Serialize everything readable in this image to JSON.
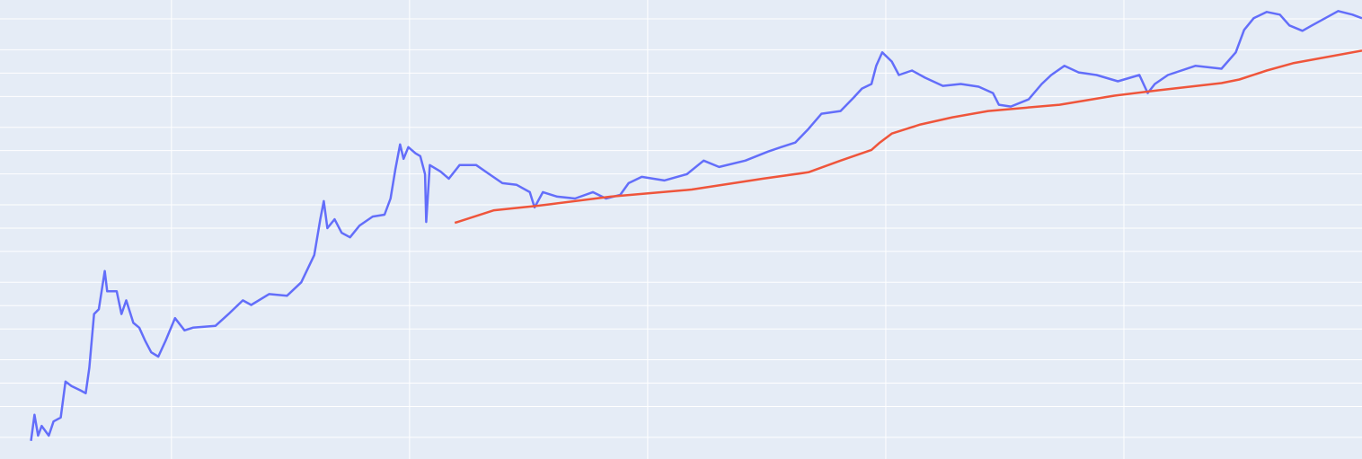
{
  "chart_data": {
    "type": "line",
    "ylog": true,
    "grid": true,
    "background": "#e5ecf6",
    "grid_color": "#ffffff",
    "xlim": [
      2010.56,
      2022.0
    ],
    "xticks": [
      2012,
      2014,
      2016,
      2018,
      2020
    ],
    "ylim": [
      0.105,
      87700
    ],
    "yticks": [
      0.2,
      0.5,
      1,
      2,
      5,
      10,
      20,
      50,
      100,
      200,
      500,
      1000,
      2000,
      5000,
      10000,
      20000,
      50000
    ],
    "series": [
      {
        "color": "#636efa",
        "x": [
          2010.82,
          2010.85,
          2010.88,
          2010.91,
          2010.97,
          2011.01,
          2011.07,
          2011.11,
          2011.16,
          2011.24,
          2011.28,
          2011.31,
          2011.35,
          2011.39,
          2011.44,
          2011.46,
          2011.54,
          2011.58,
          2011.62,
          2011.68,
          2011.73,
          2011.78,
          2011.83,
          2011.89,
          2011.95,
          2012.03,
          2012.11,
          2012.18,
          2012.37,
          2012.48,
          2012.6,
          2012.67,
          2012.82,
          2012.97,
          2013.09,
          2013.2,
          2013.25,
          2013.28,
          2013.31,
          2013.37,
          2013.43,
          2013.5,
          2013.58,
          2013.69,
          2013.79,
          2013.84,
          2013.88,
          2013.92,
          2013.95,
          2013.99,
          2014.05,
          2014.09,
          2014.13,
          2014.14,
          2014.17,
          2014.26,
          2014.33,
          2014.42,
          2014.56,
          2014.67,
          2014.78,
          2014.9,
          2015.01,
          2015.05,
          2015.12,
          2015.24,
          2015.39,
          2015.54,
          2015.65,
          2015.77,
          2015.84,
          2015.95,
          2016.14,
          2016.33,
          2016.47,
          2016.6,
          2016.82,
          2017.01,
          2017.12,
          2017.24,
          2017.35,
          2017.46,
          2017.62,
          2017.73,
          2017.8,
          2017.88,
          2017.92,
          2017.97,
          2018.05,
          2018.11,
          2018.22,
          2018.33,
          2018.48,
          2018.63,
          2018.78,
          2018.9,
          2018.95,
          2019.05,
          2019.2,
          2019.31,
          2019.39,
          2019.5,
          2019.62,
          2019.77,
          2019.95,
          2020.13,
          2020.2,
          2020.26,
          2020.37,
          2020.6,
          2020.82,
          2020.94,
          2021.01,
          2021.09,
          2021.2,
          2021.31,
          2021.39,
          2021.5,
          2021.58,
          2021.69,
          2021.8,
          2021.92,
          2022.0
        ],
        "values": [
          0.18,
          0.39,
          0.21,
          0.28,
          0.21,
          0.32,
          0.36,
          1.05,
          0.92,
          0.8,
          0.74,
          1.57,
          7.8,
          9.0,
          28,
          15.3,
          15.3,
          7.8,
          11.7,
          6.0,
          5.2,
          3.5,
          2.5,
          2.2,
          3.5,
          6.9,
          4.8,
          5.2,
          5.5,
          7.8,
          11.7,
          10.2,
          14.1,
          13.4,
          20,
          45,
          130,
          223,
          100,
          130,
          87,
          76,
          108,
          141,
          149,
          241,
          568,
          1200,
          783,
          1110,
          921,
          849,
          497,
          120,
          650,
          538,
          435,
          650,
          650,
          497,
          380,
          361,
          291,
          185,
          291,
          255,
          241,
          291,
          241,
          269,
          380,
          458,
          412,
          497,
          743,
          615,
          743,
          971,
          1110,
          1270,
          1900,
          2990,
          3240,
          4840,
          6320,
          7230,
          12400,
          18500,
          14100,
          9440,
          10800,
          8730,
          6850,
          7230,
          6670,
          5530,
          3910,
          3700,
          4580,
          7230,
          9440,
          12400,
          10200,
          9440,
          7840,
          9440,
          5530,
          7230,
          9440,
          12400,
          11400,
          18500,
          36100,
          51000,
          61500,
          56800,
          41200,
          35100,
          41200,
          51000,
          63200,
          56800,
          51000
        ]
      },
      {
        "color": "#ef553b",
        "x": [
          2014.38,
          2014.71,
          2015.09,
          2015.69,
          2016.37,
          2016.97,
          2017.35,
          2017.62,
          2017.88,
          2017.95,
          2018.05,
          2018.29,
          2018.56,
          2018.86,
          2019.46,
          2019.92,
          2020.29,
          2020.82,
          2020.97,
          2021.2,
          2021.42,
          2022.0
        ],
        "values": [
          117,
          170,
          195,
          255,
          315,
          435,
          525,
          743,
          1020,
          1270,
          1660,
          2170,
          2690,
          3240,
          3910,
          5110,
          6000,
          7430,
          8260,
          10800,
          13400,
          19500
        ]
      }
    ]
  }
}
